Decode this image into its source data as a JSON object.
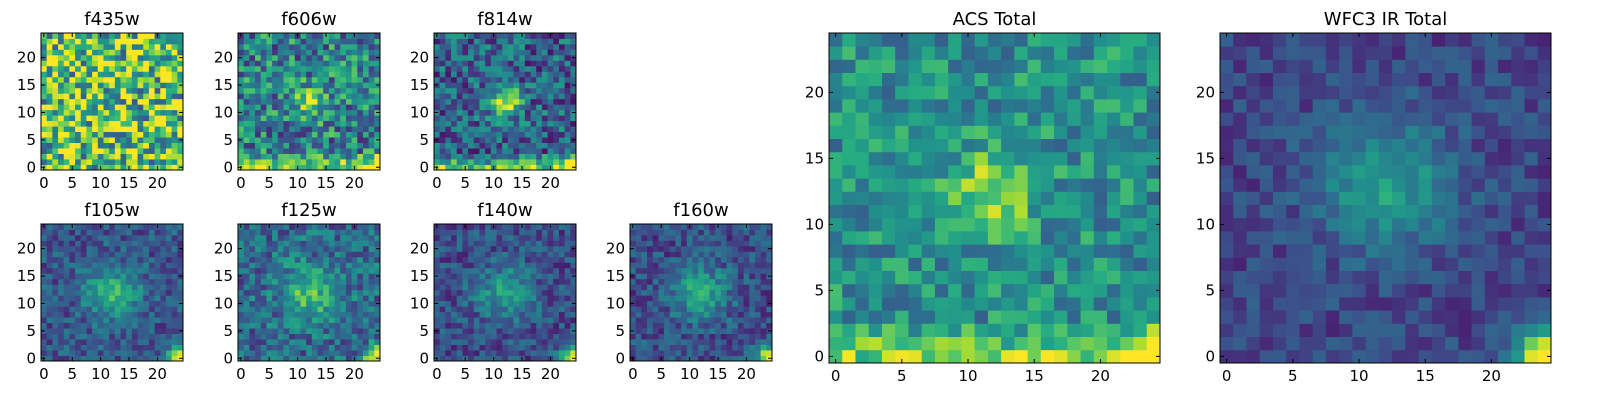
{
  "chart_data": [
    {
      "type": "heatmap",
      "title": "f435w",
      "xticks": [
        0,
        5,
        10,
        15,
        20
      ],
      "yticks": [
        0,
        5,
        10,
        15,
        20
      ],
      "grid_size": 25,
      "colormap": "viridis",
      "pattern": {
        "background": 0.72,
        "noise": 0.45,
        "blob_center": [
          12,
          12
        ],
        "blob_sigma": 3,
        "blob_amp": 0.0,
        "corner_amp": 0.15,
        "bottom_band": 0.0
      }
    },
    {
      "type": "heatmap",
      "title": "f606w",
      "xticks": [
        0,
        5,
        10,
        15,
        20
      ],
      "yticks": [
        0,
        5,
        10,
        15,
        20
      ],
      "grid_size": 25,
      "colormap": "viridis",
      "pattern": {
        "background": 0.45,
        "noise": 0.3,
        "blob_center": [
          12,
          12
        ],
        "blob_sigma": 2,
        "blob_amp": 0.4,
        "corner_amp": 0.55,
        "bottom_band": 0.4
      }
    },
    {
      "type": "heatmap",
      "title": "f814w",
      "xticks": [
        0,
        5,
        10,
        15,
        20
      ],
      "yticks": [
        0,
        5,
        10,
        15,
        20
      ],
      "grid_size": 25,
      "colormap": "viridis",
      "pattern": {
        "background": 0.32,
        "noise": 0.25,
        "blob_center": [
          12,
          12
        ],
        "blob_sigma": 2,
        "blob_amp": 0.6,
        "corner_amp": 0.65,
        "bottom_band": 0.5
      }
    },
    {
      "type": "heatmap",
      "title": "f105w",
      "xticks": [
        0,
        5,
        10,
        15,
        20
      ],
      "yticks": [
        0,
        5,
        10,
        15,
        20
      ],
      "grid_size": 25,
      "colormap": "viridis",
      "pattern": {
        "background": 0.28,
        "noise": 0.15,
        "blob_center": [
          12,
          12
        ],
        "blob_sigma": 3.5,
        "blob_amp": 0.35,
        "corner_amp": 0.75,
        "bottom_band": 0.0
      }
    },
    {
      "type": "heatmap",
      "title": "f125w",
      "xticks": [
        0,
        5,
        10,
        15,
        20
      ],
      "yticks": [
        0,
        5,
        10,
        15,
        20
      ],
      "grid_size": 25,
      "colormap": "viridis",
      "pattern": {
        "background": 0.35,
        "noise": 0.2,
        "blob_center": [
          12,
          12
        ],
        "blob_sigma": 3.5,
        "blob_amp": 0.35,
        "corner_amp": 0.7,
        "bottom_band": 0.0
      }
    },
    {
      "type": "heatmap",
      "title": "f140w",
      "xticks": [
        0,
        5,
        10,
        15,
        20
      ],
      "yticks": [
        0,
        5,
        10,
        15,
        20
      ],
      "grid_size": 25,
      "colormap": "viridis",
      "pattern": {
        "background": 0.25,
        "noise": 0.15,
        "blob_center": [
          12,
          12
        ],
        "blob_sigma": 3.5,
        "blob_amp": 0.3,
        "corner_amp": 0.75,
        "bottom_band": 0.0
      }
    },
    {
      "type": "heatmap",
      "title": "f160w",
      "xticks": [
        0,
        5,
        10,
        15,
        20
      ],
      "yticks": [
        0,
        5,
        10,
        15,
        20
      ],
      "grid_size": 25,
      "colormap": "viridis",
      "pattern": {
        "background": 0.25,
        "noise": 0.15,
        "blob_center": [
          12,
          12
        ],
        "blob_sigma": 3.5,
        "blob_amp": 0.35,
        "corner_amp": 0.75,
        "bottom_band": 0.0
      }
    },
    {
      "type": "heatmap",
      "title": "ACS Total",
      "xticks": [
        0,
        5,
        10,
        15,
        20
      ],
      "yticks": [
        0,
        5,
        10,
        15,
        20
      ],
      "grid_size": 25,
      "colormap": "viridis",
      "pattern": {
        "background": 0.5,
        "noise": 0.2,
        "blob_center": [
          12,
          12.5
        ],
        "blob_sigma": 2.2,
        "blob_amp": 0.4,
        "corner_amp": 0.5,
        "bottom_band": 0.35
      }
    },
    {
      "type": "heatmap",
      "title": "WFC3 IR Total",
      "xticks": [
        0,
        5,
        10,
        15,
        20
      ],
      "yticks": [
        0,
        5,
        10,
        15,
        20
      ],
      "grid_size": 25,
      "colormap": "viridis",
      "pattern": {
        "background": 0.22,
        "noise": 0.1,
        "blob_center": [
          12,
          13
        ],
        "blob_sigma": 3.5,
        "blob_amp": 0.35,
        "corner_amp": 0.8,
        "bottom_band": 0.0
      }
    }
  ]
}
